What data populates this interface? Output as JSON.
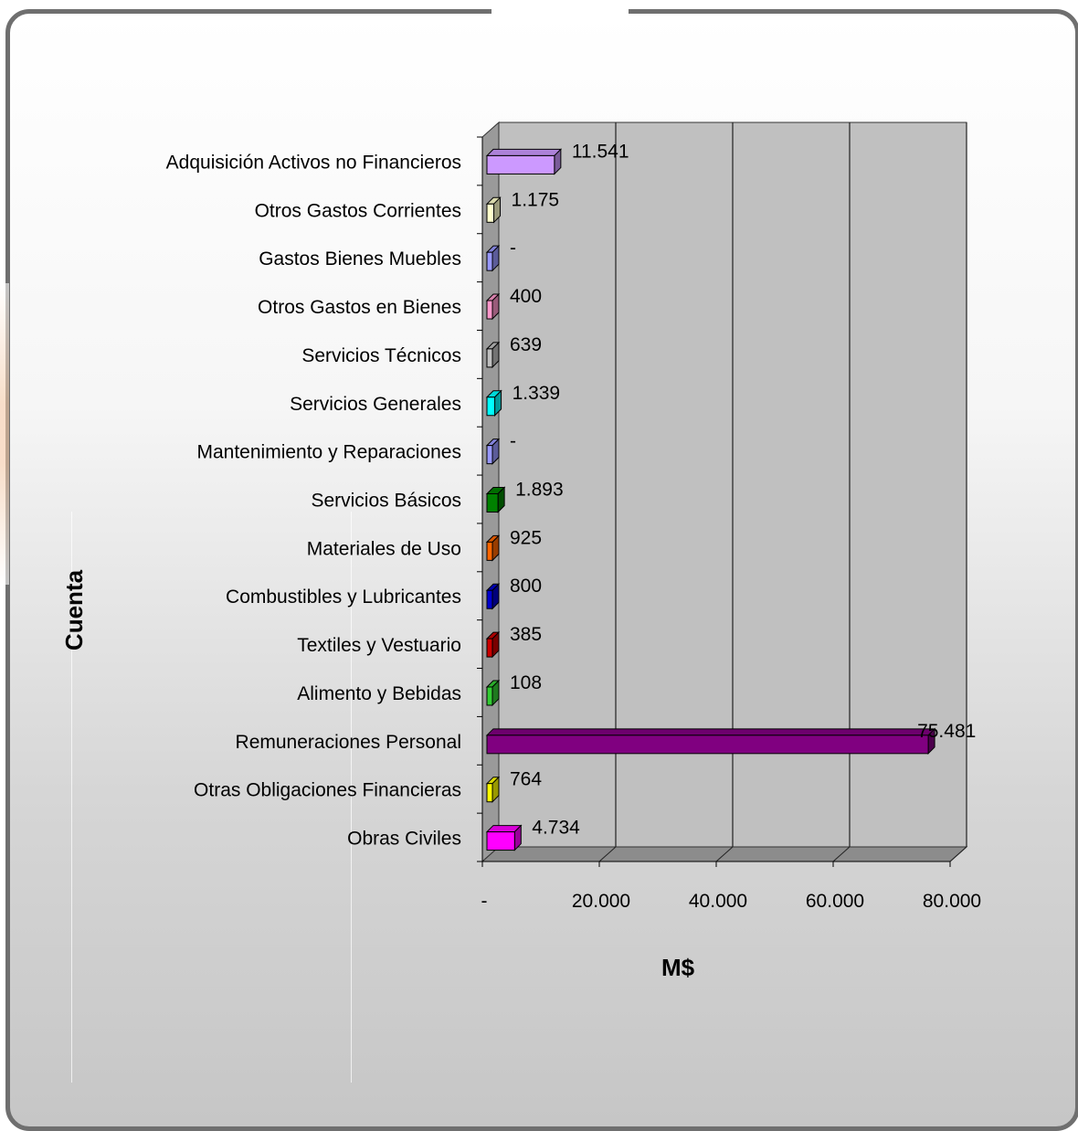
{
  "chart_data": {
    "type": "bar",
    "orientation": "horizontal",
    "three_d": true,
    "xlabel": "M$",
    "ylabel": "Cuenta",
    "xlim": [
      0,
      80000
    ],
    "x_ticks": [
      "-",
      "20.000",
      "40.000",
      "60.000",
      "80.000"
    ],
    "x_tick_values": [
      0,
      20000,
      40000,
      60000,
      80000
    ],
    "grid": true,
    "categories": [
      "Adquisición Activos no Financieros",
      "Otros Gastos Corrientes",
      "Gastos Bienes Muebles",
      "Otros Gastos en Bienes",
      "Servicios Técnicos",
      "Servicios Generales",
      "Mantenimiento y Reparaciones",
      "Servicios Básicos",
      "Materiales de Uso",
      "Combustibles y Lubricantes",
      "Textiles y Vestuario",
      "Alimento y Bebidas",
      "Remuneraciones Personal",
      "Otras Obligaciones Financieras",
      "Obras Civiles"
    ],
    "values": [
      11541,
      1175,
      0,
      400,
      639,
      1339,
      0,
      1893,
      925,
      800,
      385,
      108,
      75481,
      764,
      4734
    ],
    "value_labels": [
      "11.541",
      "1.175",
      "-",
      "400",
      "639",
      "1.339",
      "-",
      "1.893",
      "925",
      "800",
      "385",
      "108",
      "75.481",
      "764",
      "4.734"
    ],
    "colors": [
      "#cc99ff",
      "#ffffcc",
      "#9999ff",
      "#ff99cc",
      "#c0c0c0",
      "#00ffff",
      "#9999ff",
      "#008000",
      "#ff6600",
      "#0000cc",
      "#cc0000",
      "#33cc33",
      "#800080",
      "#ffff00",
      "#ff00ff"
    ]
  }
}
